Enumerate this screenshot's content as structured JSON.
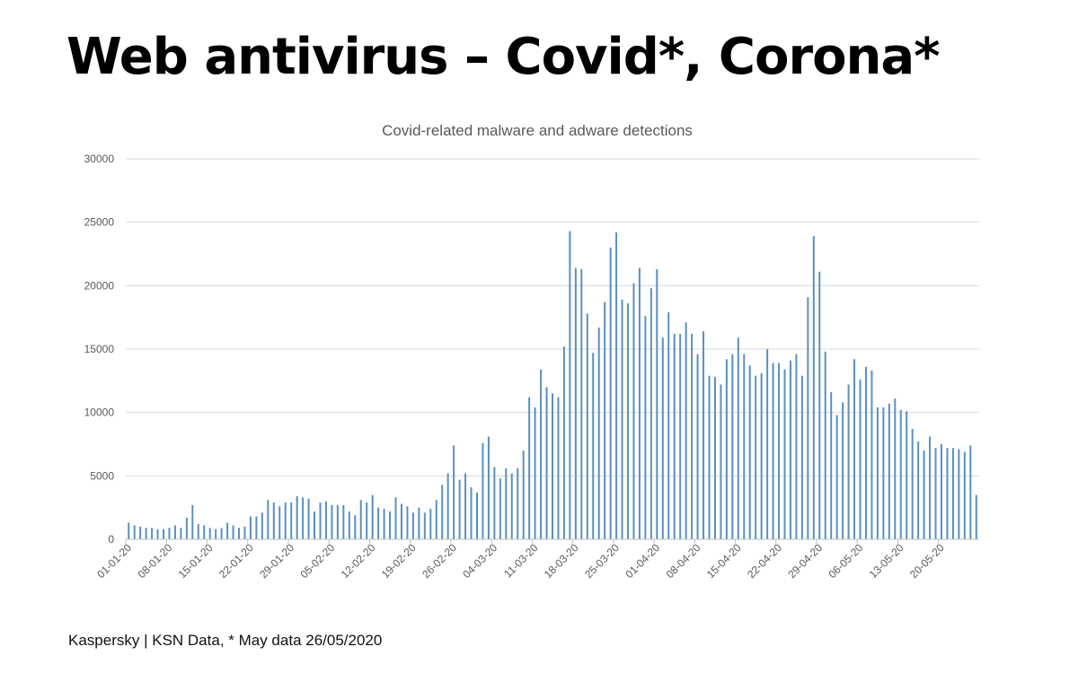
{
  "page": {
    "title": "Web antivirus – Covid*, Corona*",
    "footer": "Kaspersky | KSN Data, * May data 26/05/2020"
  },
  "colors": {
    "bar": "#5b8fc0",
    "grid": "#d9d9d9",
    "axis": "#bfbfbf",
    "text": "#595959"
  },
  "chart_data": {
    "type": "bar",
    "title": "Covid-related malware and adware detections",
    "xlabel": "",
    "ylabel": "",
    "ylim": [
      0,
      30000
    ],
    "yticks": [
      0,
      5000,
      10000,
      15000,
      20000,
      25000,
      30000
    ],
    "grid": true,
    "legend": "none",
    "xtick_labels": [
      "01-01-20",
      "08-01-20",
      "15-01-20",
      "22-01-20",
      "29-01-20",
      "05-02-20",
      "12-02-20",
      "19-02-20",
      "26-02-20",
      "04-03-20",
      "11-03-20",
      "18-03-20",
      "25-03-20",
      "01-04-20",
      "08-04-20",
      "15-04-20",
      "22-04-20",
      "29-04-20",
      "06-05-20",
      "13-05-20",
      "20-05-20"
    ],
    "x_start": "01-01-20",
    "x_end": "26-05-20",
    "values": [
      1300,
      1100,
      1000,
      900,
      900,
      800,
      800,
      900,
      1100,
      900,
      1700,
      2700,
      1200,
      1100,
      900,
      800,
      900,
      1300,
      1100,
      900,
      1000,
      1800,
      1800,
      2100,
      3100,
      2900,
      2600,
      2900,
      2900,
      3400,
      3300,
      3200,
      2200,
      2900,
      3000,
      2700,
      2700,
      2700,
      2200,
      1900,
      3100,
      2900,
      3500,
      2500,
      2400,
      2200,
      3300,
      2800,
      2600,
      2100,
      2500,
      2100,
      2400,
      3100,
      4300,
      5200,
      7400,
      4700,
      5200,
      4100,
      3700,
      7600,
      8100,
      5700,
      4800,
      5600,
      5200,
      5600,
      7000,
      11200,
      10400,
      13400,
      12000,
      11500,
      11200,
      15200,
      24300,
      21400,
      21300,
      17800,
      14700,
      16700,
      18700,
      23000,
      24200,
      18900,
      18600,
      20200,
      21400,
      17600,
      19800,
      21300,
      15900,
      17900,
      16200,
      16200,
      17100,
      16200,
      14600,
      16400,
      12900,
      12800,
      12200,
      14200,
      14600,
      15900,
      14600,
      13700,
      12900,
      13100,
      15000,
      13900,
      13900,
      13400,
      14100,
      14600,
      12900,
      19100,
      23900,
      21100,
      14800,
      11600,
      9800,
      10800,
      12200,
      14200,
      12600,
      13600,
      13300,
      10400,
      10400,
      10700,
      11100,
      10200,
      10100,
      8700,
      7700,
      7000,
      8100,
      7200,
      7500,
      7200,
      7200,
      7100,
      6900,
      7400,
      3500
    ]
  }
}
